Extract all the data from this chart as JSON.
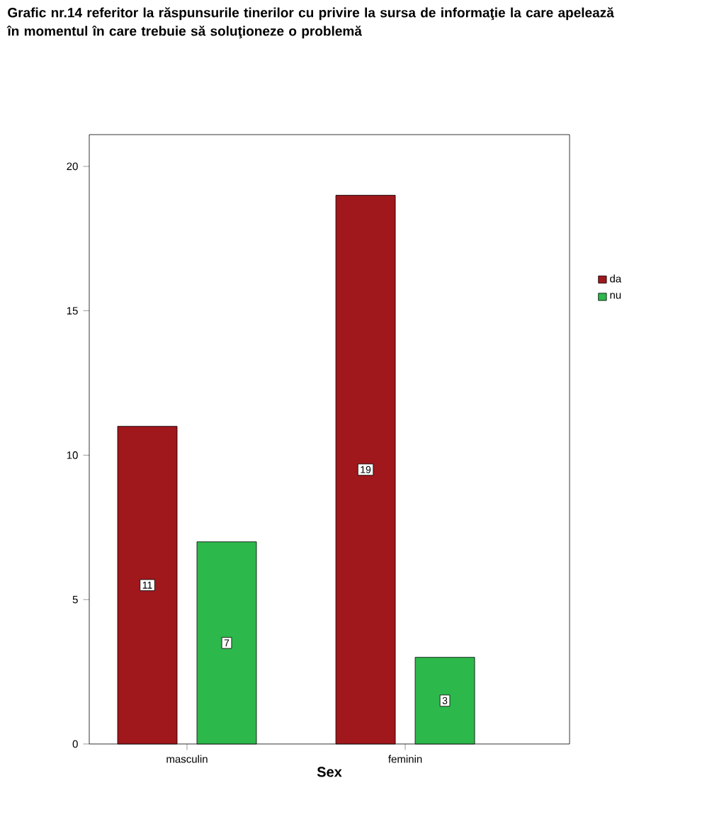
{
  "chart_data": {
    "type": "bar",
    "title": "Grafic nr.14 referitor la răspunsurile tinerilor cu privire la sursa de informaţie la care apelează în momentul în care trebuie să soluţioneze o problemă",
    "xlabel": "Sex",
    "categories": [
      "masculin",
      "feminin"
    ],
    "series": [
      {
        "name": "da",
        "color": "#a0171c",
        "values": [
          11,
          19
        ]
      },
      {
        "name": "nu",
        "color": "#2db84b",
        "values": [
          7,
          3
        ]
      }
    ],
    "ylim": [
      0,
      21.1
    ],
    "yticks": [
      0,
      5,
      10,
      15,
      20
    ],
    "grid": false,
    "legend": "right",
    "data_labels": true
  }
}
